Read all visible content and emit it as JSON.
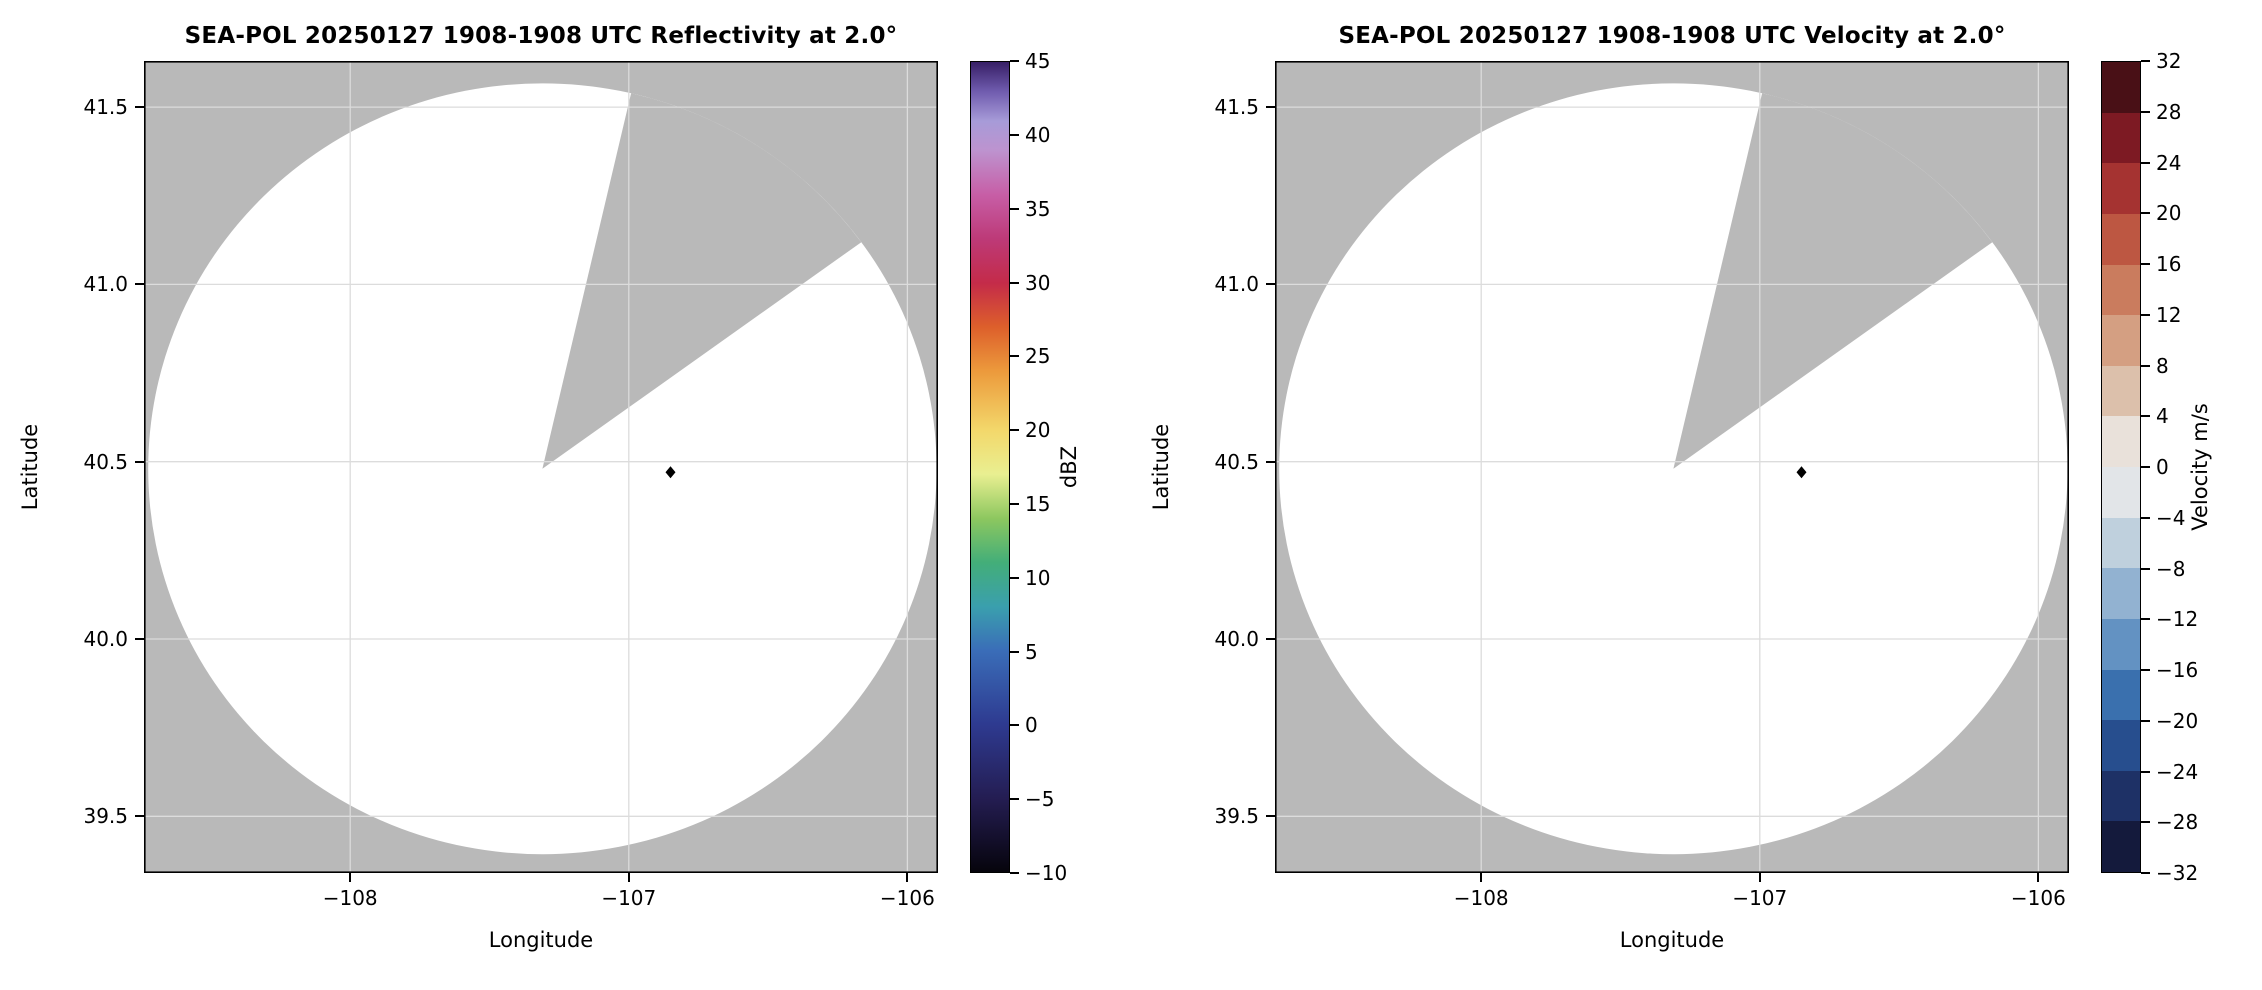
{
  "figure": {
    "background_color": "#ffffff"
  },
  "chart_data": [
    {
      "type": "radar_ppi",
      "title": "SEA-POL 20250127 1908-1908 UTC Reflectivity at 2.0°",
      "xlabel": "Longitude",
      "ylabel": "Latitude",
      "xlim": [
        -108.74,
        -105.89
      ],
      "ylim": [
        39.34,
        41.63
      ],
      "grid": true,
      "xticks": {
        "values": [
          -108,
          -107,
          -106
        ],
        "labels": [
          "−108",
          "−107",
          "−106"
        ]
      },
      "yticks": {
        "values": [
          39.5,
          40.0,
          40.5,
          41.0,
          41.5
        ],
        "labels": [
          "39.5",
          "40.0",
          "40.5",
          "41.0",
          "41.5"
        ]
      },
      "radar": {
        "center_lon": -107.31,
        "center_lat": 40.48,
        "radius_lon_deg": 1.415,
        "radius_lat_deg": 1.087,
        "coverage_color": "#ffffff",
        "outside_color": "#b9b9b9",
        "missing_sector_bearing_deg": [
          13,
          54
        ]
      },
      "marker": {
        "lon": -106.85,
        "lat": 40.47,
        "shape": "diamond",
        "color": "#000000"
      },
      "colorbar": {
        "label": "dBZ",
        "min": -10,
        "max": 45,
        "style": "continuous",
        "ticks": [
          -10,
          -5,
          0,
          5,
          10,
          15,
          20,
          25,
          30,
          35,
          40,
          45
        ],
        "tick_labels": [
          "−10",
          "−5",
          "0",
          "5",
          "10",
          "15",
          "20",
          "25",
          "30",
          "35",
          "40",
          "45"
        ],
        "gradient_stops": [
          [
            -10,
            "#06040c"
          ],
          [
            -5,
            "#241d52"
          ],
          [
            0,
            "#2e3a90"
          ],
          [
            5,
            "#3a6db8"
          ],
          [
            8,
            "#3a9fae"
          ],
          [
            11,
            "#43ae79"
          ],
          [
            14,
            "#8cc75f"
          ],
          [
            17,
            "#e9ef91"
          ],
          [
            20,
            "#f3d86b"
          ],
          [
            24,
            "#ec9a3c"
          ],
          [
            27,
            "#dd5f2b"
          ],
          [
            30,
            "#c42b49"
          ],
          [
            33,
            "#bd3a78"
          ],
          [
            36,
            "#c75ea6"
          ],
          [
            39,
            "#bd93cf"
          ],
          [
            41,
            "#a79bd8"
          ],
          [
            43,
            "#6f5bae"
          ],
          [
            45,
            "#371f66"
          ]
        ]
      }
    },
    {
      "type": "radar_ppi",
      "title": "SEA-POL 20250127 1908-1908 UTC Velocity at 2.0°",
      "xlabel": "Longitude",
      "ylabel": "Latitude",
      "xlim": [
        -108.74,
        -105.89
      ],
      "ylim": [
        39.34,
        41.63
      ],
      "grid": true,
      "xticks": {
        "values": [
          -108,
          -107,
          -106
        ],
        "labels": [
          "−108",
          "−107",
          "−106"
        ]
      },
      "yticks": {
        "values": [
          39.5,
          40.0,
          40.5,
          41.0,
          41.5
        ],
        "labels": [
          "39.5",
          "40.0",
          "40.5",
          "41.0",
          "41.5"
        ]
      },
      "radar": {
        "center_lon": -107.31,
        "center_lat": 40.48,
        "radius_lon_deg": 1.415,
        "radius_lat_deg": 1.087,
        "coverage_color": "#ffffff",
        "outside_color": "#b9b9b9",
        "missing_sector_bearing_deg": [
          13,
          54
        ]
      },
      "marker": {
        "lon": -106.85,
        "lat": 40.47,
        "shape": "diamond",
        "color": "#000000"
      },
      "colorbar": {
        "label": "Velocity m/s",
        "min": -32,
        "max": 32,
        "style": "discrete",
        "ticks": [
          -32,
          -28,
          -24,
          -20,
          -16,
          -12,
          -8,
          -4,
          0,
          4,
          8,
          12,
          16,
          20,
          24,
          28,
          32
        ],
        "tick_labels": [
          "−32",
          "−28",
          "−24",
          "−20",
          "−16",
          "−12",
          "−8",
          "−4",
          "0",
          "4",
          "8",
          "12",
          "16",
          "20",
          "24",
          "28",
          "32"
        ],
        "segment_colors": [
          "#141a3c",
          "#1e3166",
          "#274e8e",
          "#3a70ae",
          "#6392c2",
          "#92b2d1",
          "#bfd0dd",
          "#e2e5e8",
          "#e9e1da",
          "#dcc0ab",
          "#d49f82",
          "#ca7c5e",
          "#bd5742",
          "#a53331",
          "#7d1a23",
          "#491016"
        ]
      }
    }
  ]
}
